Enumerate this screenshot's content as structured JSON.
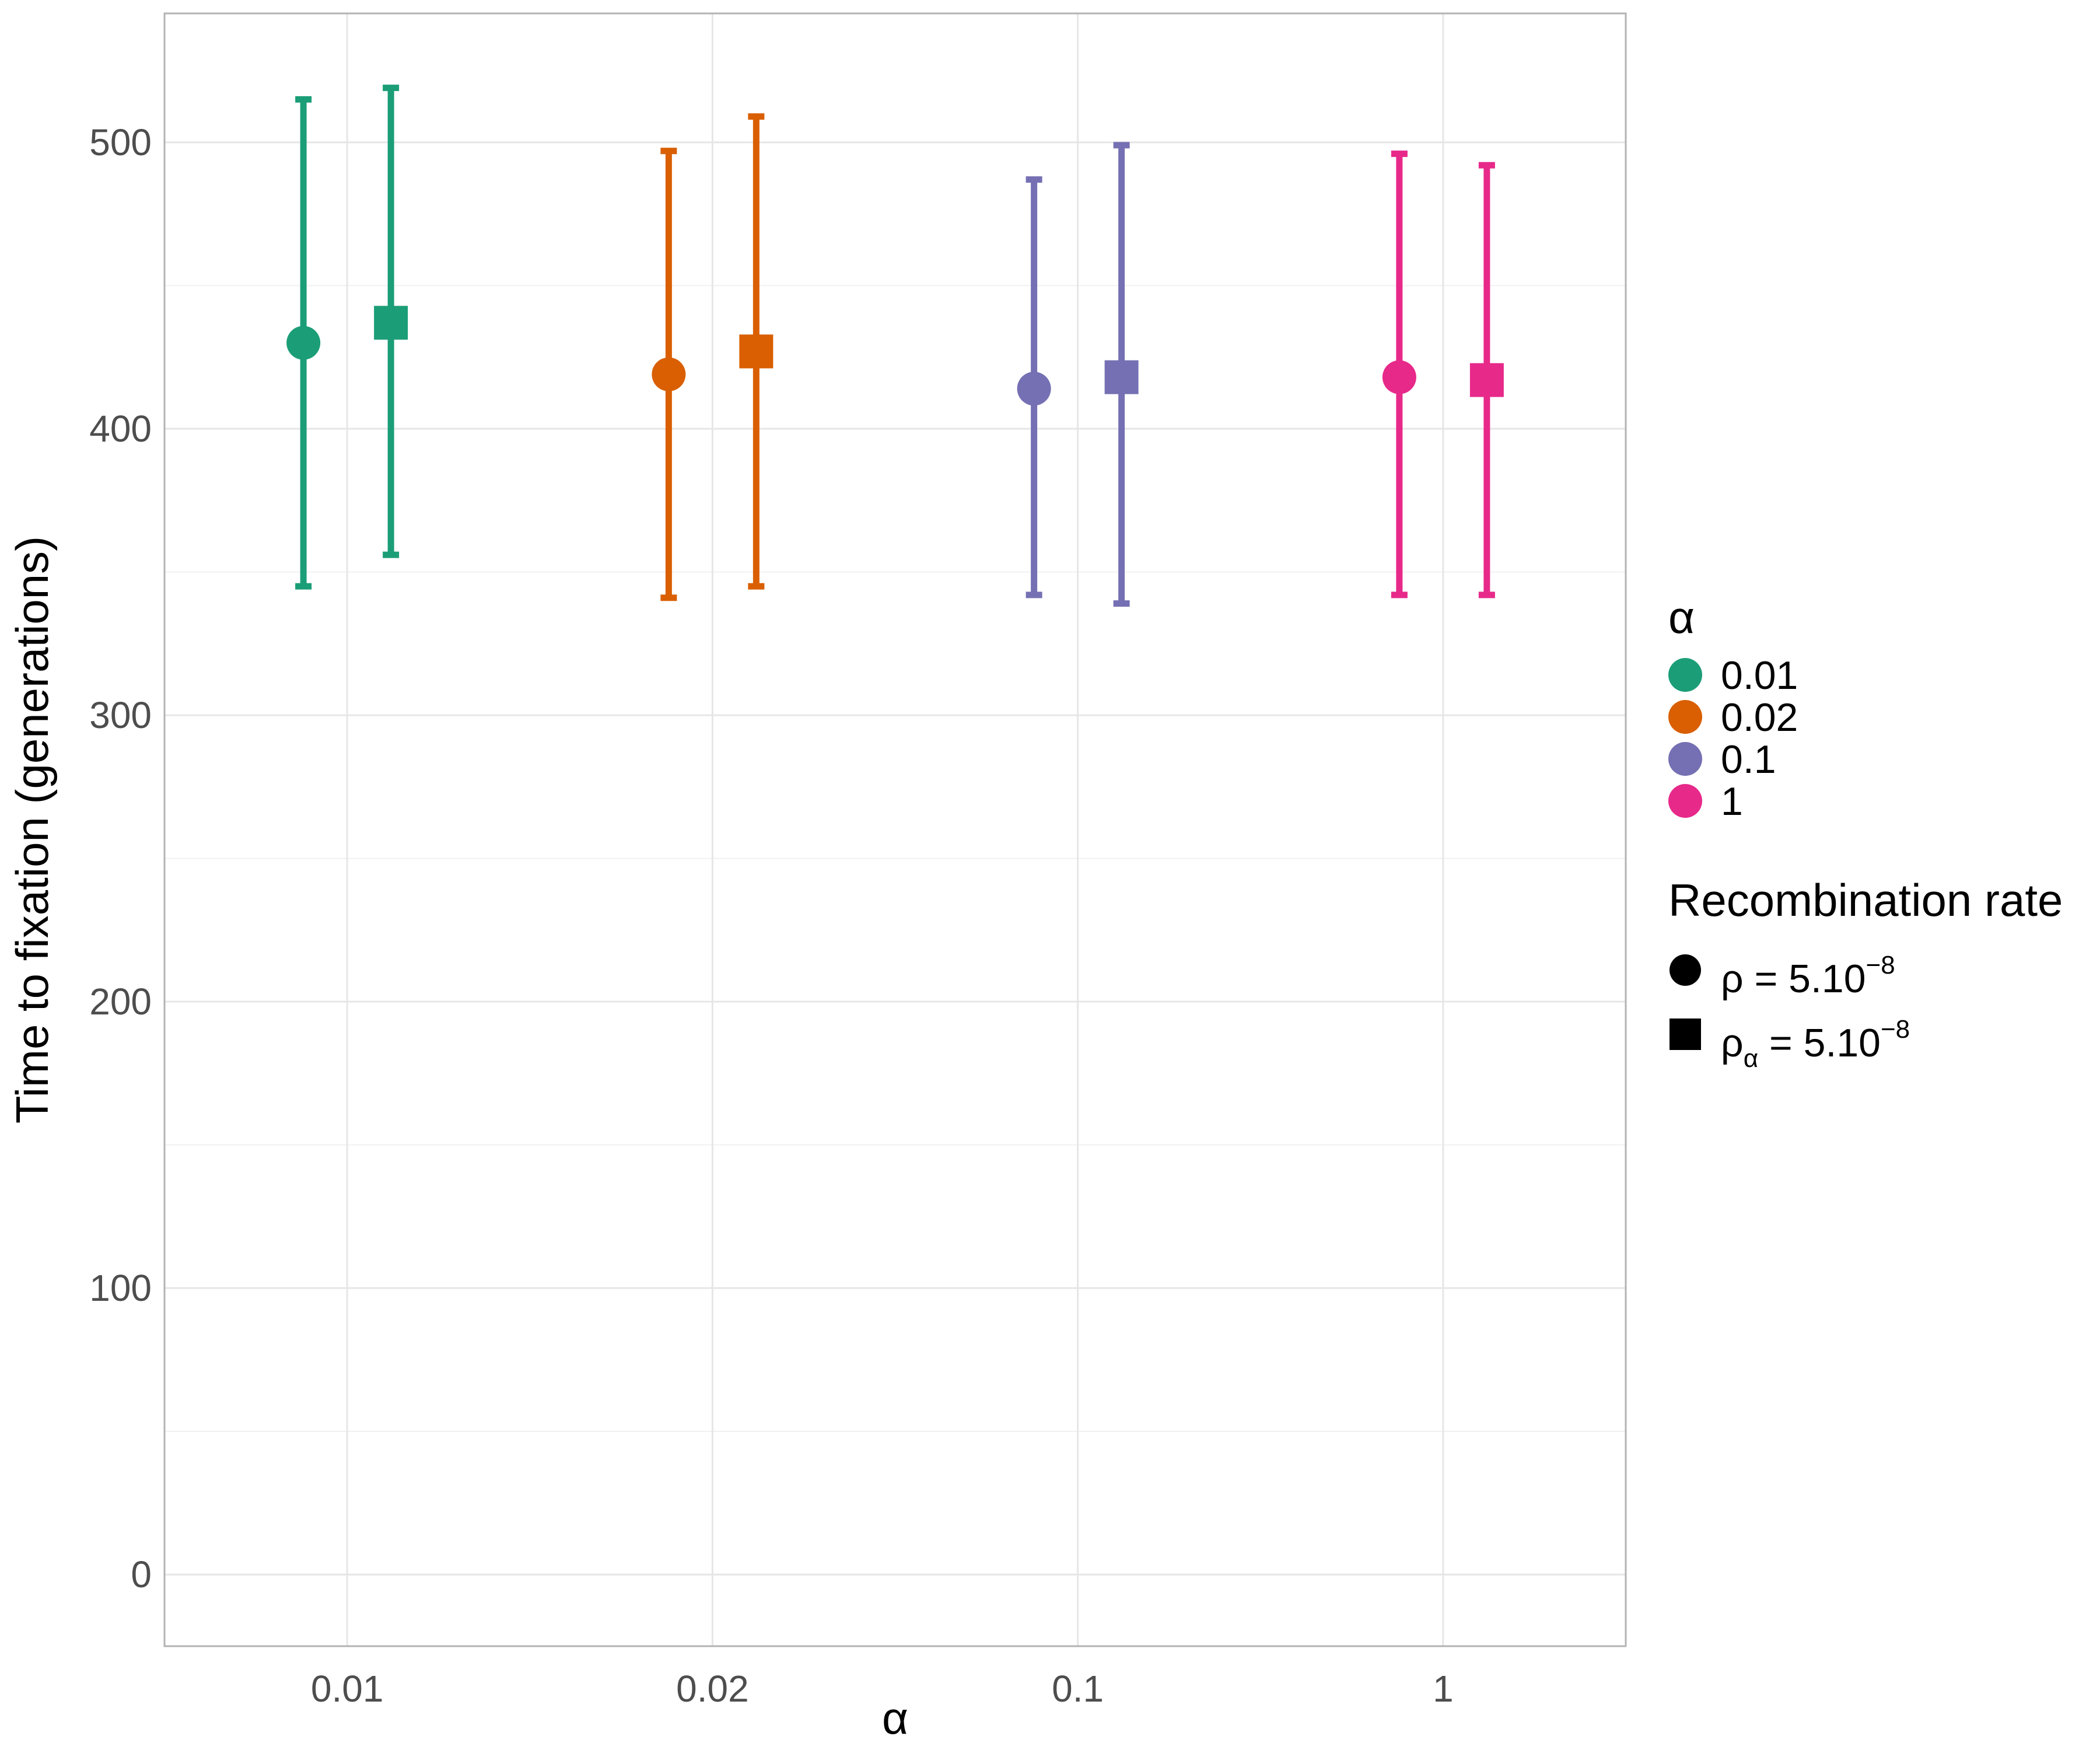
{
  "chart_data": {
    "type": "scatter",
    "xlabel": "α",
    "ylabel": "Time to fixation (generations)",
    "categories": [
      "0.01",
      "0.02",
      "0.1",
      "1"
    ],
    "ylim": [
      -25,
      545
    ],
    "yticks": [
      0,
      100,
      200,
      300,
      400,
      500
    ],
    "grid": true,
    "legend_position": "right",
    "colors": {
      "0.01": "#1b9e77",
      "0.02": "#d95f02",
      "0.1": "#7570b3",
      "1": "#e7298a"
    },
    "legends": {
      "color": {
        "title": "α",
        "entries": [
          "0.01",
          "0.02",
          "0.1",
          "1"
        ]
      },
      "shape": {
        "title": "Recombination rate",
        "entries": [
          {
            "shape": "circle",
            "base": "ρ",
            "sub": "",
            "rest": " = 5.10",
            "sup": "−8"
          },
          {
            "shape": "square",
            "base": "ρ",
            "sub": "α",
            "rest": " = 5.10",
            "sup": "−8"
          }
        ]
      }
    },
    "series": [
      {
        "category": "0.01",
        "shape": "circle",
        "y": 430,
        "ymin": 345,
        "ymax": 515
      },
      {
        "category": "0.01",
        "shape": "square",
        "y": 437,
        "ymin": 356,
        "ymax": 519
      },
      {
        "category": "0.02",
        "shape": "circle",
        "y": 419,
        "ymin": 341,
        "ymax": 497
      },
      {
        "category": "0.02",
        "shape": "square",
        "y": 427,
        "ymin": 345,
        "ymax": 509
      },
      {
        "category": "0.1",
        "shape": "circle",
        "y": 414,
        "ymin": 342,
        "ymax": 487
      },
      {
        "category": "0.1",
        "shape": "square",
        "y": 418,
        "ymin": 339,
        "ymax": 499
      },
      {
        "category": "1",
        "shape": "circle",
        "y": 418,
        "ymin": 342,
        "ymax": 496
      },
      {
        "category": "1",
        "shape": "square",
        "y": 417,
        "ymin": 342,
        "ymax": 492
      }
    ]
  }
}
